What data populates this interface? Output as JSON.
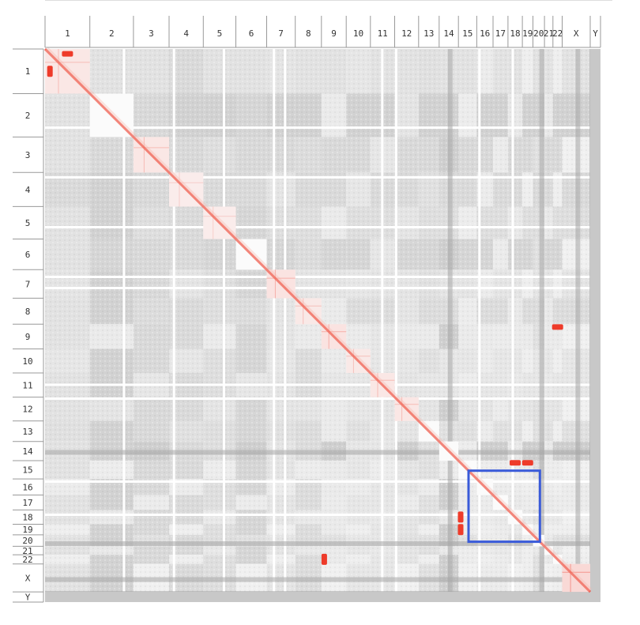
{
  "chart_data": {
    "type": "heatmap",
    "title": "",
    "xlabel": "",
    "ylabel": "",
    "chromosomes": [
      "1",
      "2",
      "3",
      "4",
      "5",
      "6",
      "7",
      "8",
      "9",
      "10",
      "11",
      "12",
      "13",
      "14",
      "15",
      "16",
      "17",
      "18",
      "19",
      "20",
      "21",
      "22",
      "X",
      "Y"
    ],
    "chrom_lengths_mb": [
      249,
      242,
      198,
      190,
      181,
      171,
      159,
      145,
      138,
      134,
      135,
      133,
      114,
      107,
      102,
      90,
      83,
      80,
      59,
      64,
      47,
      51,
      156,
      57
    ],
    "colors": {
      "contact_high": "#ee3b2a",
      "contact_mid": "#f7a49a",
      "background_light": "#f2f2f2",
      "background_dark": "#b9b9b9",
      "blank_line": "#ffffff",
      "gap_stripe": "#a6a6a6",
      "selection_box": "#3a5bd9",
      "axis_line": "#999999"
    },
    "intra_chrom_blocks": [
      {
        "chrom": "1",
        "intensity": 0.5
      },
      {
        "chrom": "3",
        "intensity": 0.5
      },
      {
        "chrom": "4",
        "intensity": 0.35
      },
      {
        "chrom": "5",
        "intensity": 0.35
      },
      {
        "chrom": "7",
        "intensity": 0.6
      },
      {
        "chrom": "8",
        "intensity": 0.45
      },
      {
        "chrom": "9",
        "intensity": 0.6
      },
      {
        "chrom": "10",
        "intensity": 0.45
      },
      {
        "chrom": "11",
        "intensity": 0.5
      },
      {
        "chrom": "12",
        "intensity": 0.5
      },
      {
        "chrom": "X",
        "intensity": 0.85
      }
    ],
    "translocation_hotspots": [
      {
        "chrom_a": "15",
        "chrom_b": "19"
      },
      {
        "chrom_a": "15",
        "chrom_b": "18"
      },
      {
        "chrom_a": "9",
        "chrom_b": "22"
      },
      {
        "chrom_a": "1",
        "chrom_b": "1"
      }
    ],
    "selection": {
      "from_chrom": "15",
      "to_chrom": "20"
    }
  }
}
